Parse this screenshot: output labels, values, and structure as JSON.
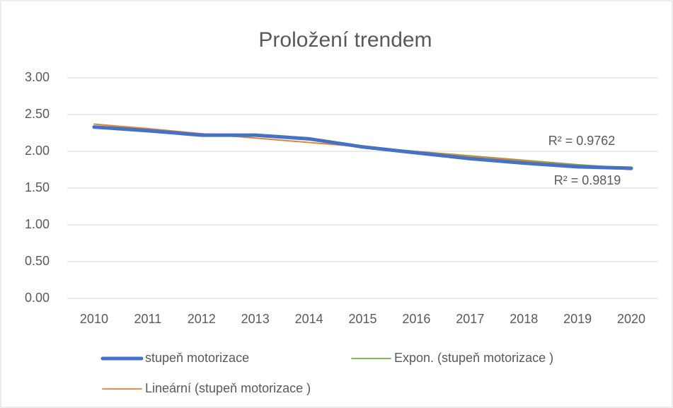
{
  "chart_data": {
    "type": "line",
    "title": "Proložení trendem",
    "categories": [
      "2010",
      "2011",
      "2012",
      "2013",
      "2014",
      "2015",
      "2016",
      "2017",
      "2018",
      "2019",
      "2020"
    ],
    "series": [
      {
        "name": "stupeň motorizace",
        "color": "#4472c4",
        "values": [
          2.33,
          2.28,
          2.22,
          2.22,
          2.17,
          2.06,
          1.98,
          1.9,
          1.84,
          1.79,
          1.77
        ]
      },
      {
        "name": "Expon. (stupeň motorizace )",
        "color": "#70ad47",
        "values": [
          2.37,
          2.3,
          2.24,
          2.18,
          2.12,
          2.06,
          2.0,
          1.94,
          1.88,
          1.82,
          1.77
        ]
      },
      {
        "name": "Lineární (stupeň motorizace )",
        "color": "#ed7d31",
        "values": [
          2.37,
          2.31,
          2.24,
          2.18,
          2.12,
          2.06,
          2.0,
          1.93,
          1.87,
          1.81,
          1.75
        ]
      }
    ],
    "annotations": [
      "R² = 0.9762",
      "R² = 0.9819"
    ],
    "ylim": [
      0,
      3
    ],
    "yticks": [
      {
        "value": 0,
        "label": "0.00"
      },
      {
        "value": 0.5,
        "label": "0.50"
      },
      {
        "value": 1,
        "label": "1.00"
      },
      {
        "value": 1.5,
        "label": "1.50"
      },
      {
        "value": 2,
        "label": "2.00"
      },
      {
        "value": 2.5,
        "label": "2.50"
      },
      {
        "value": 3,
        "label": "3.00"
      }
    ],
    "grid": true,
    "legend": "bottom"
  }
}
